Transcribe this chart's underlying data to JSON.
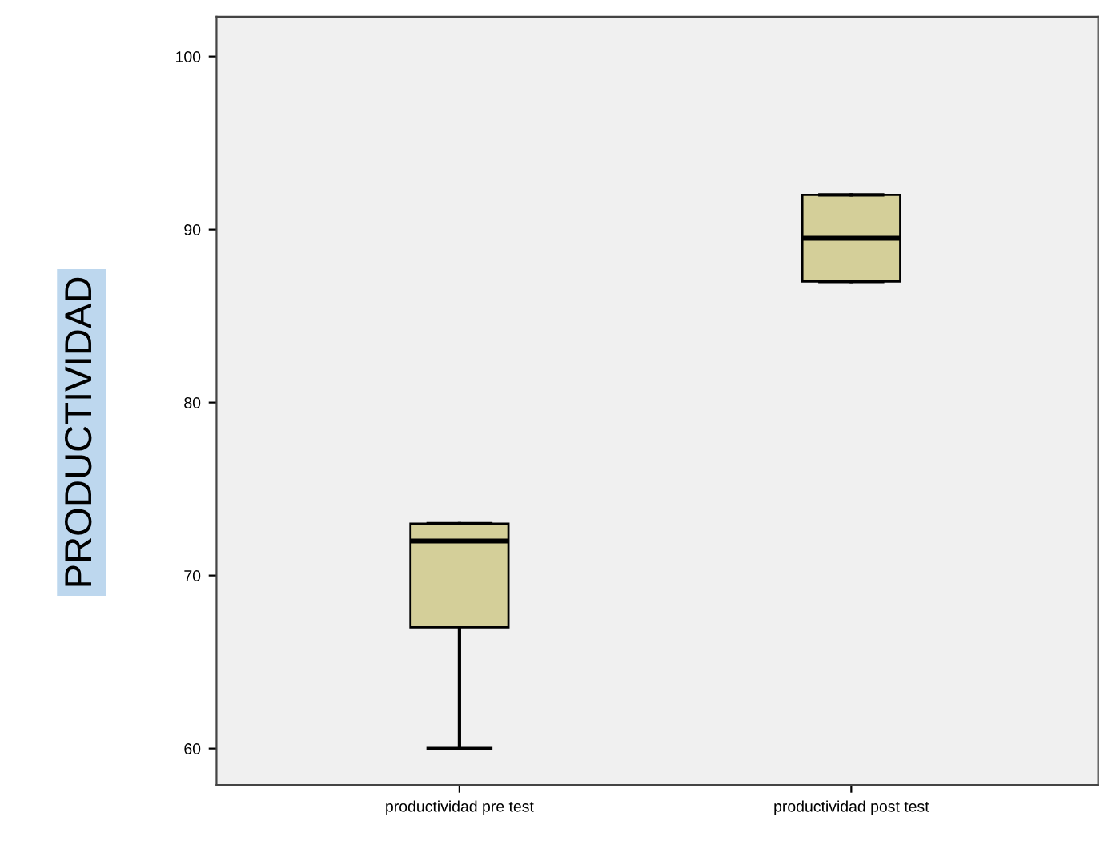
{
  "chart_data": {
    "type": "box",
    "ylabel": "PRODUCTIVIDAD",
    "categories": [
      "productividad pre test",
      "productividad post test"
    ],
    "color": "#d4cf99",
    "ylim": [
      57.9,
      102.3
    ],
    "yticks": [
      60,
      70,
      80,
      90,
      100
    ],
    "grid": false,
    "boxes": [
      {
        "low": 60,
        "q1": 67,
        "median": 72,
        "q3": 73,
        "high": 73
      },
      {
        "low": 87,
        "q1": 87,
        "median": 89.5,
        "q3": 92,
        "high": 92
      }
    ]
  }
}
